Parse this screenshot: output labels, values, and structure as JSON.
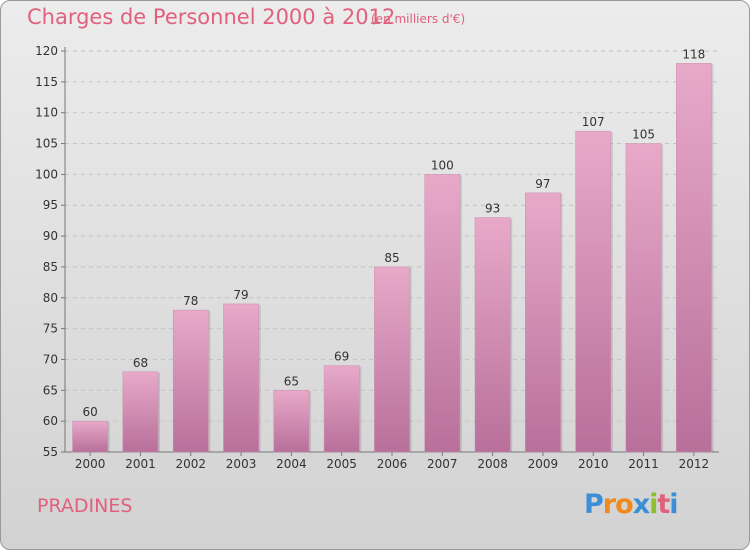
{
  "title": "Charges de Personnel 2000 à 2012",
  "subtitle": "(en milliers d'€)",
  "place_name": "PRADINES",
  "logo": {
    "text": "Proxiti",
    "letters": [
      "P",
      "r",
      "o",
      "x",
      "i",
      "t",
      "i"
    ],
    "colors": [
      "#3b8fd6",
      "#f08a1c",
      "#f08a1c",
      "#3b8fd6",
      "#8bbf2c",
      "#e0607e",
      "#3b8fd6"
    ]
  },
  "colors": {
    "title": "#e0607e",
    "bar_top": "#e8a9c9",
    "bar_bottom": "#b8709a"
  },
  "chart_data": {
    "type": "bar",
    "categories": [
      "2000",
      "2001",
      "2002",
      "2003",
      "2004",
      "2005",
      "2006",
      "2007",
      "2008",
      "2009",
      "2010",
      "2011",
      "2012"
    ],
    "values": [
      60,
      68,
      78,
      79,
      65,
      69,
      85,
      100,
      93,
      97,
      107,
      105,
      118
    ],
    "data_labels": [
      "60",
      "68",
      "78",
      "79",
      "65",
      "69",
      "85",
      "100",
      "93",
      "97",
      "107",
      "105",
      "118"
    ],
    "ylim": [
      55,
      120
    ],
    "yticks": [
      55,
      60,
      65,
      70,
      75,
      80,
      85,
      90,
      95,
      100,
      105,
      110,
      115,
      120
    ],
    "grid": true,
    "xlabel": "",
    "ylabel": ""
  }
}
